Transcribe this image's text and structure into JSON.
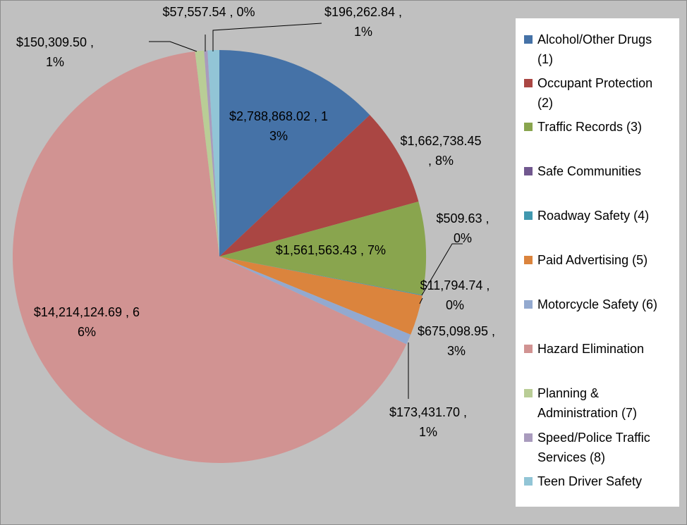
{
  "chart_data": {
    "type": "pie",
    "categories": [
      "Alcohol/Other Drugs (1)",
      "Occupant Protection (2)",
      "Traffic Records (3)",
      "Safe Communities",
      "Roadway Safety (4)",
      "Paid Advertising (5)",
      "Motorcycle Safety (6)",
      "Hazard Elimination",
      "Planning & Administration (7)",
      "Speed/Police Traffic Services (8)",
      "Teen Driver Safety"
    ],
    "values": [
      2788868.02,
      1662738.45,
      1561563.43,
      509.63,
      11794.74,
      675098.95,
      173431.7,
      14214124.69,
      150309.5,
      57557.54,
      196262.84
    ],
    "value_labels": [
      "$2,788,868.02 , 13%",
      "$1,662,738.45 , 8%",
      "$1,561,563.43 , 7%",
      "$509.63 , 0%",
      "$11,794.74 , 0%",
      "$675,098.95 , 3%",
      "$173,431.70 , 1%",
      "$14,214,124.69 , 66%",
      "$150,309.50 , 1%",
      "$57,557.54 , 0%",
      "$196,262.84 , 1%"
    ],
    "colors": [
      "#4572a7",
      "#aa4643",
      "#89a54e",
      "#71588f",
      "#4198af",
      "#db843d",
      "#93a9cf",
      "#d19392",
      "#b9cd96",
      "#a99bbd",
      "#92c5d6"
    ],
    "legend": "right"
  }
}
